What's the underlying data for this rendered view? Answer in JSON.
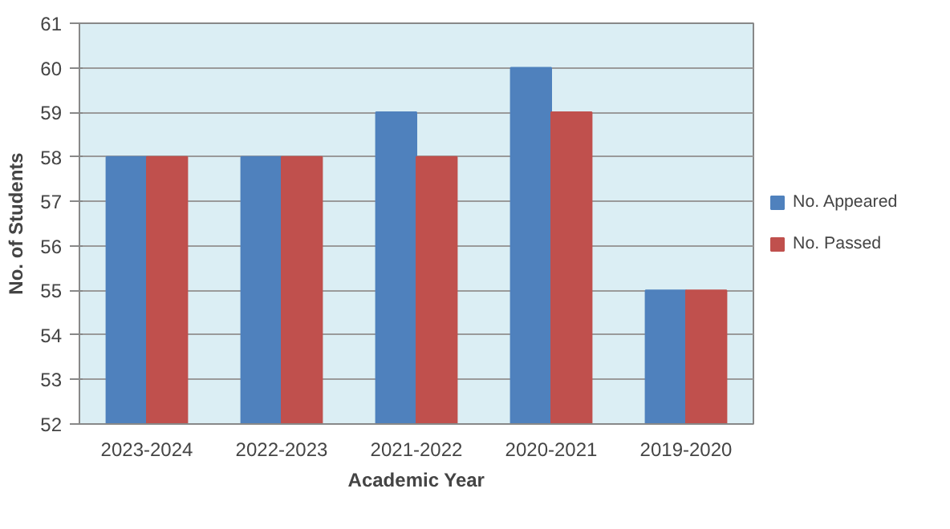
{
  "chart_data": {
    "type": "bar",
    "xlabel": "Academic Year",
    "ylabel": "No. of Students",
    "categories": [
      "2023-2024",
      "2022-2023",
      "2021-2022",
      "2020-2021",
      "2019-2020"
    ],
    "series": [
      {
        "name": "No. Appeared",
        "color": "#4f81bd",
        "values": [
          58,
          58,
          59,
          60,
          55
        ]
      },
      {
        "name": "No. Passed",
        "color": "#c0504d",
        "values": [
          58,
          58,
          58,
          59,
          55
        ]
      }
    ],
    "ylim": [
      52,
      61
    ],
    "yticks": [
      52,
      53,
      54,
      55,
      56,
      57,
      58,
      59,
      60,
      61
    ],
    "grid": "y",
    "legend": "right"
  }
}
